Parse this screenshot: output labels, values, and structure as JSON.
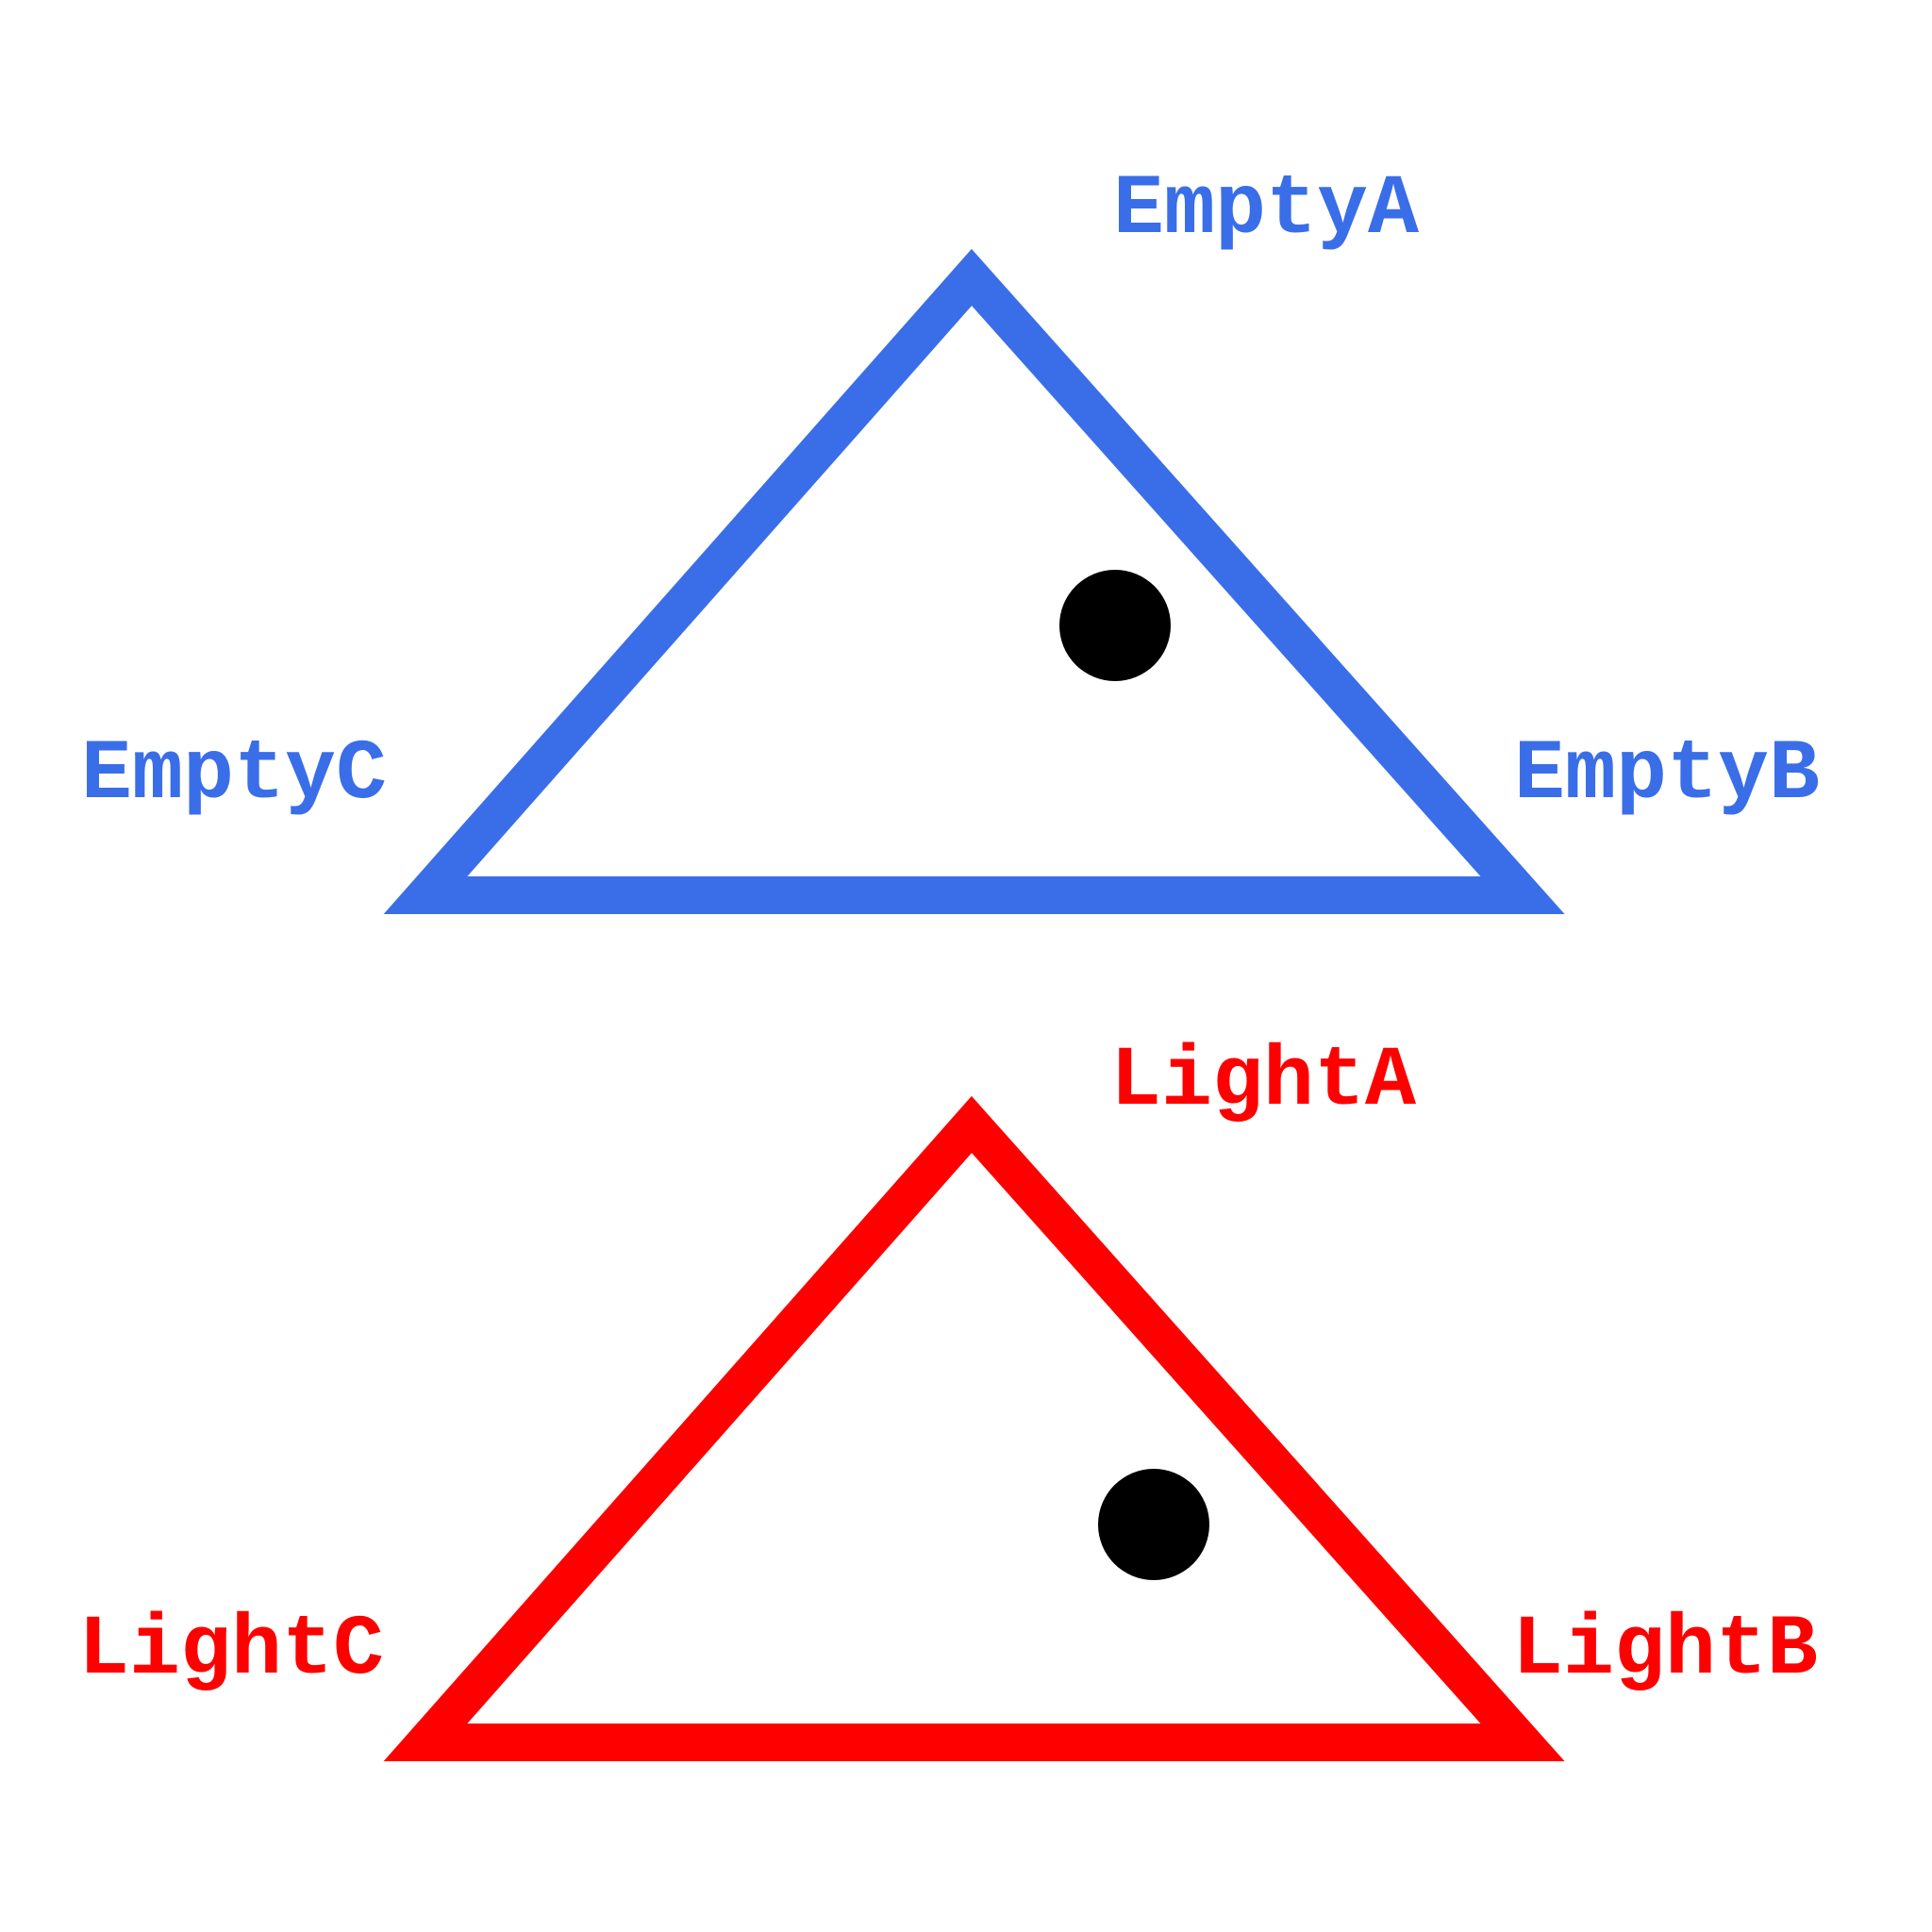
{
  "colors": {
    "background": "#ffffff",
    "top_triangle": "#3a6ee8",
    "bottom_triangle": "#ff0000",
    "dot": "#000000"
  },
  "top_triangle": {
    "label_a": "EmptyA",
    "label_b": "EmptyB",
    "label_c": "EmptyC"
  },
  "bottom_triangle": {
    "label_a": "LightA",
    "label_b": "LightB",
    "label_c": "LightC"
  }
}
